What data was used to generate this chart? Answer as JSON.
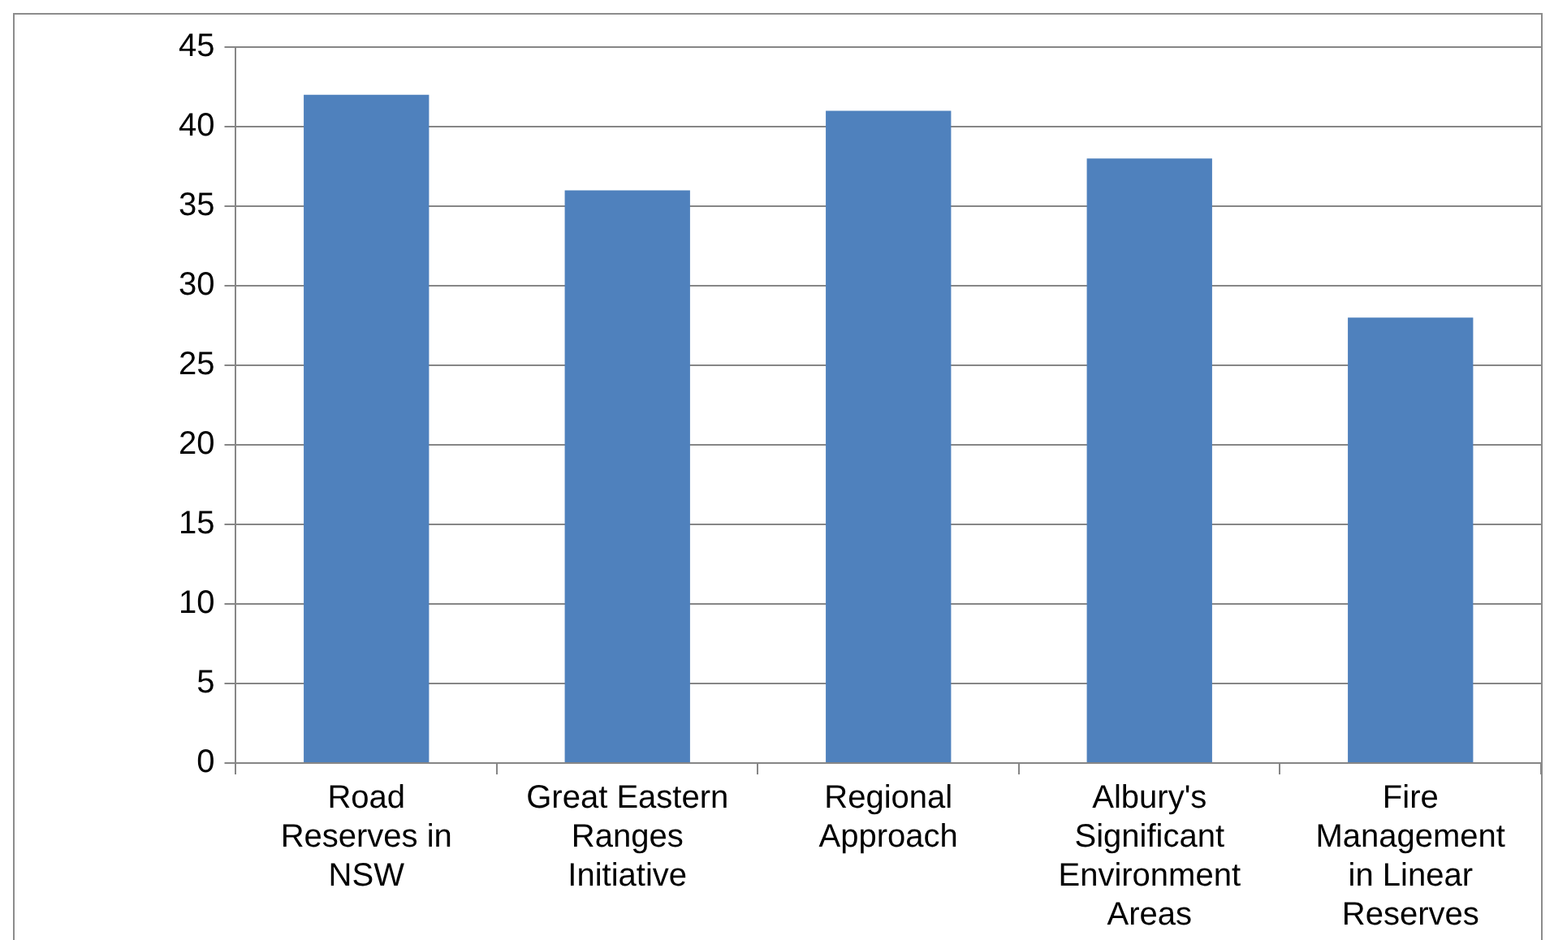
{
  "chart_data": {
    "type": "bar",
    "categories": [
      "Road Reserves in NSW",
      "Great Eastern Ranges Initiative",
      "Regional Approach",
      "Albury's Significant Environment Areas",
      "Fire Management in Linear Reserves"
    ],
    "values": [
      42,
      36,
      41,
      38,
      28
    ],
    "color": "#4f81bd",
    "ylim": [
      0,
      45
    ],
    "yticks": [
      0,
      5,
      10,
      15,
      20,
      25,
      30,
      35,
      40,
      45
    ],
    "grid": "y",
    "legend": false
  }
}
